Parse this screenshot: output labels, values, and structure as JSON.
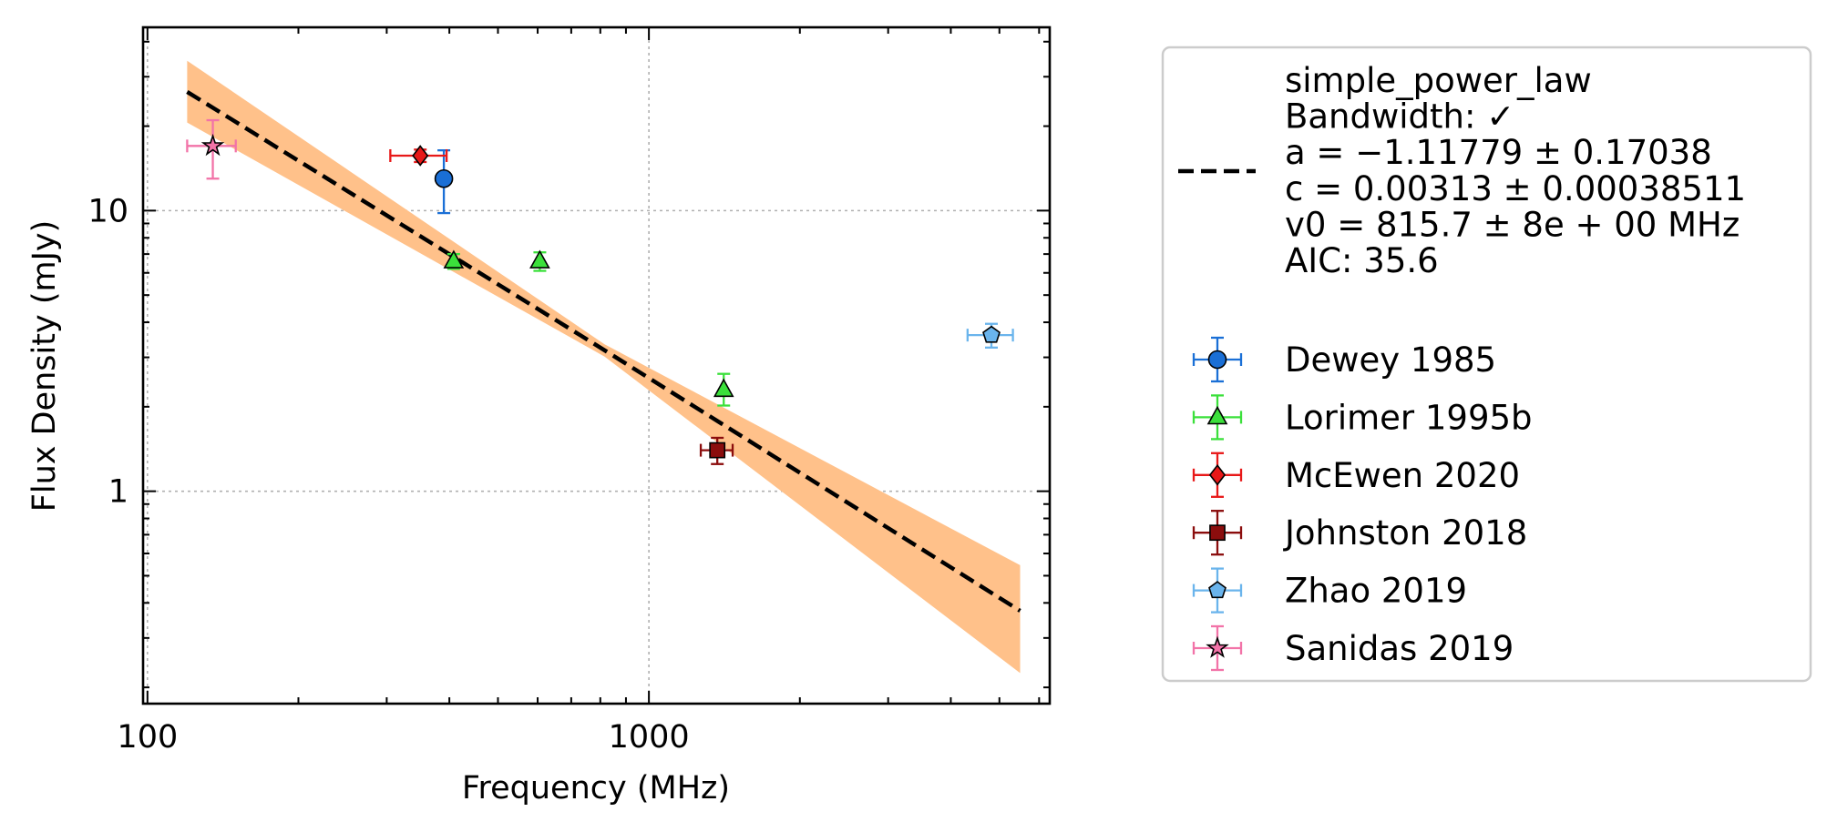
{
  "chart_data": {
    "type": "scatter",
    "title": "",
    "xlabel": "Frequency (MHz)",
    "ylabel": "Flux Density (mJy)",
    "xscale": "log",
    "yscale": "log",
    "xlim": [
      98,
      6300
    ],
    "ylim": [
      0.175,
      45
    ],
    "x_ticks": [
      {
        "value": 100,
        "label": "100"
      },
      {
        "value": 1000,
        "label": "1000"
      }
    ],
    "y_ticks": [
      {
        "value": 1,
        "label": "1"
      },
      {
        "value": 10,
        "label": "10"
      }
    ],
    "grid": true,
    "legend_position": "outside-right",
    "fit": {
      "legend_lines": [
        "simple_power_law",
        "Bandwidth: ✓",
        "a = −1.11779 ± 0.17038",
        "c = 0.00313 ± 0.00038511",
        "v0 = 815.7 ± 8e + 00 MHz",
        "AIC: 35.6"
      ],
      "line_color": "#000000",
      "band_color": "#ffc18a",
      "curve": [
        {
          "x": 120,
          "y": 26.5,
          "ylow": 20.6,
          "yhigh": 34.2
        },
        {
          "x": 816,
          "y": 3.18,
          "ylow": 3.02,
          "yhigh": 3.34
        },
        {
          "x": 5500,
          "y": 0.375,
          "ylow": 0.225,
          "yhigh": 0.545
        }
      ]
    },
    "series": [
      {
        "name": "Dewey 1985",
        "color": "#1a6fd6",
        "marker": "circle",
        "points": [
          {
            "x": 390,
            "y": 13.0,
            "xerr": [
              0,
              0
            ],
            "yerr": [
              3.2,
              3.4
            ]
          }
        ]
      },
      {
        "name": "Lorimer 1995b",
        "color": "#3be03b",
        "marker": "triangle",
        "points": [
          {
            "x": 408,
            "y": 6.6,
            "xerr": [
              0,
              0
            ],
            "yerr": [
              0.4,
              0.4
            ]
          },
          {
            "x": 606,
            "y": 6.6,
            "xerr": [
              0,
              0
            ],
            "yerr": [
              0.5,
              0.5
            ]
          },
          {
            "x": 1410,
            "y": 2.3,
            "xerr": [
              0,
              0
            ],
            "yerr": [
              0.28,
              0.32
            ]
          }
        ]
      },
      {
        "name": "McEwen 2020",
        "color": "#e81818",
        "marker": "diamond",
        "points": [
          {
            "x": 350,
            "y": 15.7,
            "xerr": [
              45,
              45
            ],
            "yerr": [
              0.8,
              0.8
            ]
          }
        ]
      },
      {
        "name": "Johnston 2018",
        "color": "#8b0d0d",
        "marker": "square",
        "points": [
          {
            "x": 1369,
            "y": 1.4,
            "xerr": [
              100,
              100
            ],
            "yerr": [
              0.15,
              0.15
            ]
          }
        ]
      },
      {
        "name": "Zhao 2019",
        "color": "#6ab4ec",
        "marker": "pentagon",
        "points": [
          {
            "x": 4820,
            "y": 3.6,
            "xerr": [
              500,
              500
            ],
            "yerr": [
              0.35,
              0.35
            ]
          }
        ]
      },
      {
        "name": "Sanidas 2019",
        "color": "#f273a8",
        "marker": "star",
        "points": [
          {
            "x": 135,
            "y": 17.0,
            "xerr": [
              15,
              15
            ],
            "yerr": [
              4.0,
              4.0
            ]
          }
        ]
      }
    ]
  }
}
